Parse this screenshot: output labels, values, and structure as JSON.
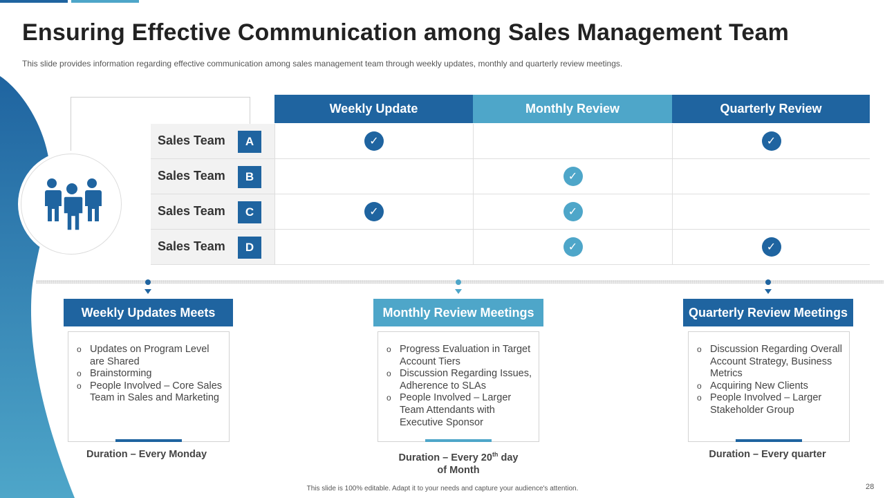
{
  "title": "Ensuring Effective Communication among Sales Management Team",
  "subtitle": "This slide provides information regarding effective communication among sales management team through weekly updates, monthly and quarterly review meetings.",
  "icon": "people-group-icon",
  "colors": {
    "dark_blue": "#1f64a0",
    "light_blue": "#4ea6c9"
  },
  "table": {
    "columns": [
      "Weekly Update",
      "Monthly Review",
      "Quarterly Review"
    ],
    "rows": [
      {
        "label": "Sales Team",
        "letter": "A",
        "checks": [
          true,
          false,
          true
        ]
      },
      {
        "label": "Sales Team",
        "letter": "B",
        "checks": [
          false,
          true,
          false
        ]
      },
      {
        "label": "Sales Team",
        "letter": "C",
        "checks": [
          true,
          true,
          false
        ]
      },
      {
        "label": "Sales Team",
        "letter": "D",
        "checks": [
          false,
          true,
          true
        ]
      }
    ],
    "check_glyph": "✓"
  },
  "meetings": [
    {
      "title": "Weekly Updates Meets",
      "bullets": [
        "Updates on Program Level are Shared",
        "Brainstorming",
        "People Involved – Core Sales Team in Sales and Marketing"
      ],
      "duration": "Duration – Every Monday"
    },
    {
      "title": "Monthly Review Meetings",
      "bullets": [
        "Progress Evaluation in Target Account Tiers",
        "Discussion Regarding Issues, Adherence to SLAs",
        "People Involved – Larger Team Attendants with Executive Sponsor"
      ],
      "duration_prefix": "Duration – Every 20",
      "duration_sup": "th",
      "duration_suffix": " day",
      "duration_line2": "of Month"
    },
    {
      "title": "Quarterly Review Meetings",
      "bullets": [
        "Discussion Regarding Overall Account Strategy, Business Metrics",
        "Acquiring New Clients",
        "People Involved – Larger Stakeholder Group"
      ],
      "duration": "Duration – Every quarter"
    }
  ],
  "footer": "This slide is 100% editable. Adapt it to your needs and capture your audience's attention.",
  "page_number": "28"
}
